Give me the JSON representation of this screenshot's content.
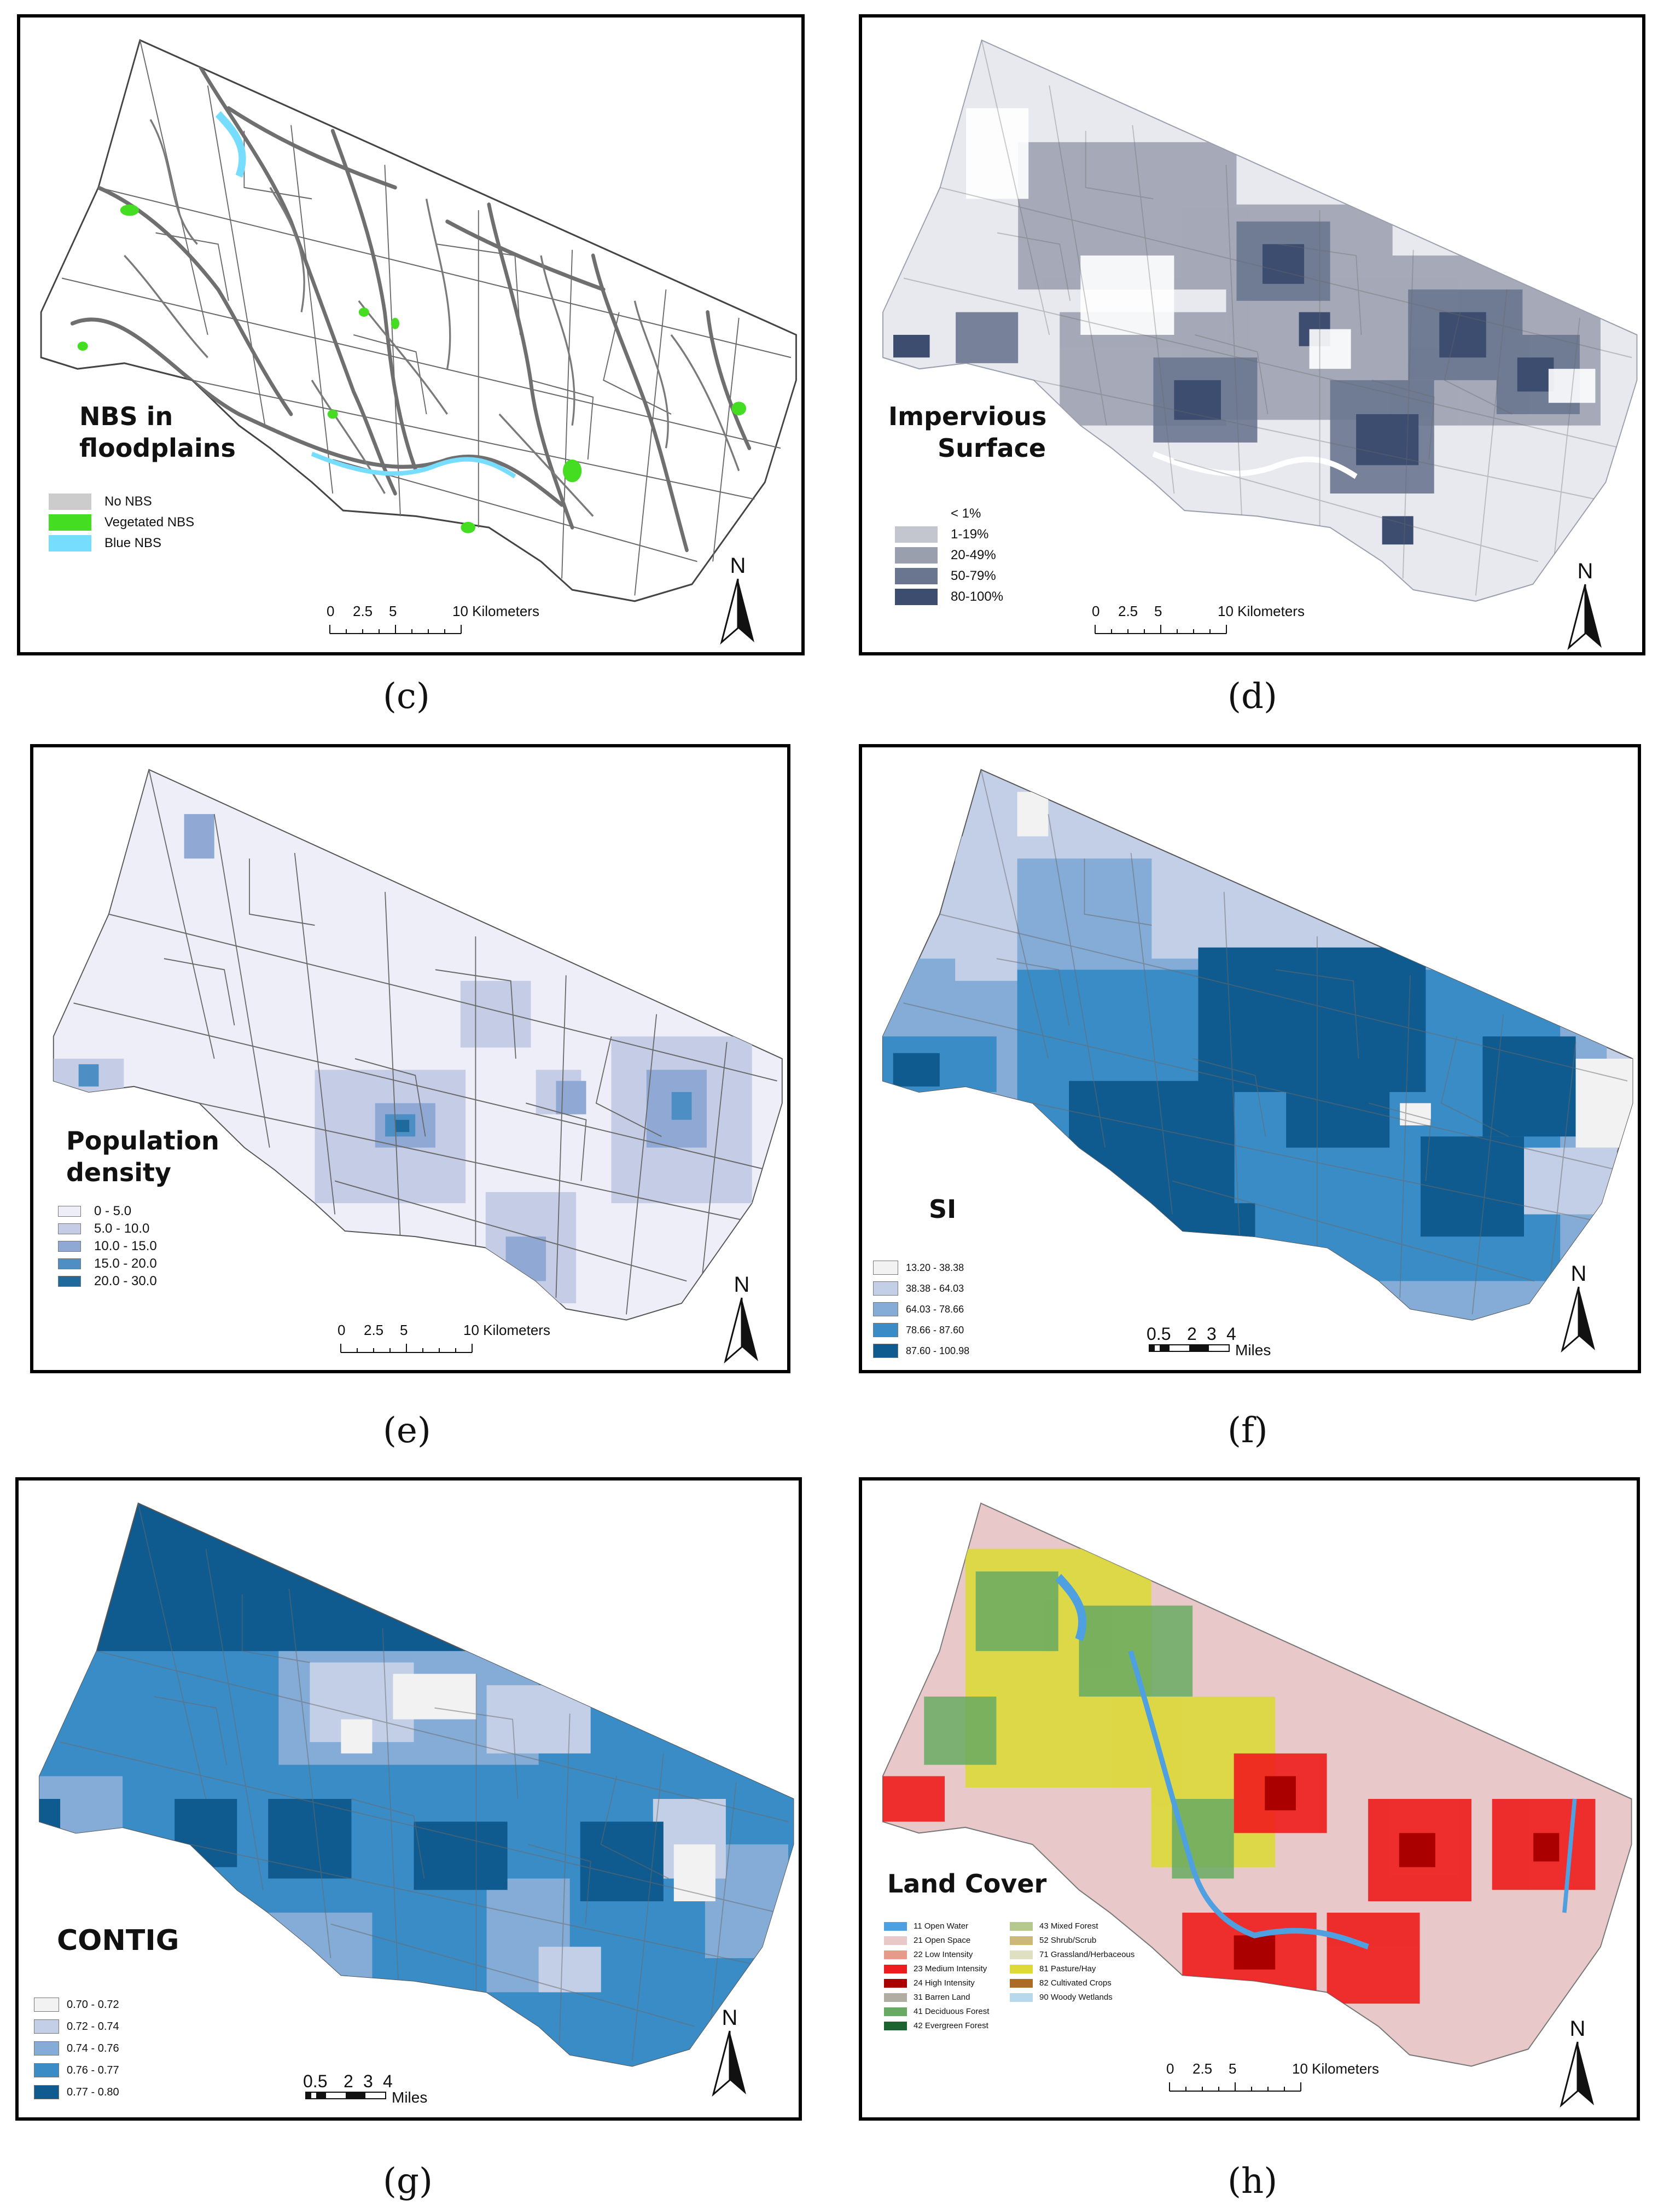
{
  "panels": {
    "c": {
      "caption": "(c)",
      "title_line1": "NBS in",
      "title_line2": "floodplains",
      "legend": [
        {
          "label": "No NBS",
          "color": "#cccccc"
        },
        {
          "label": "Vegetated NBS",
          "color": "#44dd22"
        },
        {
          "label": "Blue NBS",
          "color": "#77ddff"
        }
      ],
      "scale": {
        "ticks": [
          "0",
          "2.5",
          "5",
          "10 Kilometers"
        ]
      },
      "north": "N"
    },
    "d": {
      "caption": "(d)",
      "title_line1": "Impervious",
      "title_line2": "Surface",
      "legend": [
        {
          "label": "< 1%",
          "color": "#ffffff"
        },
        {
          "label": "1-19%",
          "color": "#c3c6ce"
        },
        {
          "label": "20-49%",
          "color": "#9a9fae"
        },
        {
          "label": "50-79%",
          "color": "#6a7590"
        },
        {
          "label": "80-100%",
          "color": "#3c4d70"
        }
      ],
      "scale": {
        "ticks": [
          "0",
          "2.5",
          "5",
          "10 Kilometers"
        ]
      },
      "north": "N"
    },
    "e": {
      "caption": "(e)",
      "title_line1": "Population",
      "title_line2": "density",
      "legend": [
        {
          "label": "0 - 5.0",
          "color": "#eeeef8"
        },
        {
          "label": "5.0 - 10.0",
          "color": "#c4cce6"
        },
        {
          "label": "10.0 - 15.0",
          "color": "#8fa9d4"
        },
        {
          "label": "15.0 - 20.0",
          "color": "#4d8fc4"
        },
        {
          "label": "20.0 - 30.0",
          "color": "#1f6a9c"
        }
      ],
      "scale": {
        "ticks": [
          "0",
          "2.5",
          "5",
          "10 Kilometers"
        ]
      },
      "north": "N"
    },
    "f": {
      "caption": "(f)",
      "title_line1": "SI",
      "legend": [
        {
          "label": "13.20 - 38.38",
          "color": "#f2f2f2"
        },
        {
          "label": "38.38 - 64.03",
          "color": "#c3cfe6"
        },
        {
          "label": "64.03 - 78.66",
          "color": "#84acd6"
        },
        {
          "label": "78.66 - 87.60",
          "color": "#3a8cc7"
        },
        {
          "label": "87.60 - 100.98",
          "color": "#0f5a8e"
        }
      ],
      "scale": {
        "ticks": [
          "0.5",
          "2",
          "3",
          "4"
        ],
        "unit": "Miles"
      },
      "north": "N"
    },
    "g": {
      "caption": "(g)",
      "title_line1": "CONTIG",
      "legend": [
        {
          "label": "0.70 - 0.72",
          "color": "#f2f2f2"
        },
        {
          "label": "0.72 - 0.74",
          "color": "#c3cfe6"
        },
        {
          "label": "0.74 - 0.76",
          "color": "#84acd6"
        },
        {
          "label": "0.76 - 0.77",
          "color": "#3a8cc7"
        },
        {
          "label": "0.77 - 0.80",
          "color": "#0f5a8e"
        }
      ],
      "scale": {
        "ticks": [
          "0.5",
          "2",
          "3",
          "4"
        ],
        "unit": "Miles"
      },
      "north": "N"
    },
    "h": {
      "caption": "(h)",
      "title_line1": "Land Cover",
      "legend_col1": [
        {
          "label": "11 Open Water",
          "color": "#4fa0e0"
        },
        {
          "label": "21 Open Space",
          "color": "#e8c8c8"
        },
        {
          "label": "22 Low Intensity",
          "color": "#e89a8a"
        },
        {
          "label": "23 Medium Intensity",
          "color": "#ee1c1c"
        },
        {
          "label": "24 High Intensity",
          "color": "#aa0000"
        },
        {
          "label": "31 Barren Land",
          "color": "#b2ada3"
        },
        {
          "label": "41 Deciduous Forest",
          "color": "#68aa63"
        },
        {
          "label": "42 Evergreen Forest",
          "color": "#1c6330"
        }
      ],
      "legend_col2": [
        {
          "label": "43 Mixed Forest",
          "color": "#b5c98e"
        },
        {
          "label": "52 Shrub/Scrub",
          "color": "#ccb879"
        },
        {
          "label": "71 Grassland/Herbaceous",
          "color": "#dfdfc2"
        },
        {
          "label": "81 Pasture/Hay",
          "color": "#dcd939"
        },
        {
          "label": "82 Cultivated Crops",
          "color": "#ab6c28"
        },
        {
          "label": "90 Woody Wetlands",
          "color": "#b8d9eb"
        }
      ],
      "scale": {
        "ticks": [
          "0",
          "2.5",
          "5",
          "10 Kilometers"
        ]
      },
      "north": "N"
    }
  }
}
